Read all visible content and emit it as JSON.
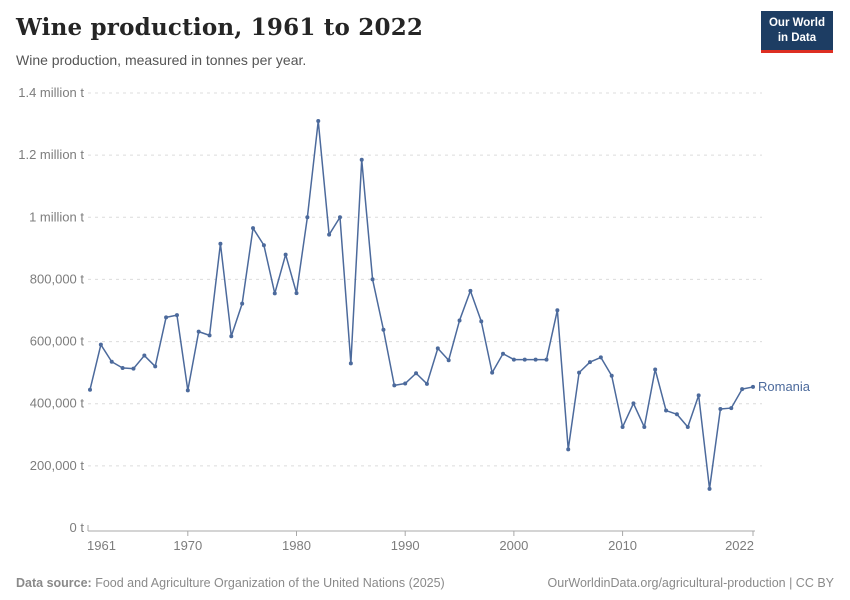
{
  "header": {
    "title": "Wine production, 1961 to 2022",
    "subtitle": "Wine production, measured in tonnes per year.",
    "logo_line1": "Our World",
    "logo_line2": "in Data"
  },
  "footer": {
    "datasource_label": "Data source:",
    "datasource_text": " Food and Agriculture Organization of the United Nations (2025)",
    "link_text": "OurWorldinData.org/agricultural-production | CC BY"
  },
  "colors": {
    "line": "#4C6A9C",
    "gridline": "#dcdcdc",
    "axis": "#a8a8a8",
    "tick_label": "#7d7d7d",
    "logo_bg": "#1d3d63",
    "logo_accent": "#dd2e22"
  },
  "chart_data": {
    "type": "line",
    "title": "Wine production, 1961 to 2022",
    "unit": "tonnes per year",
    "grid": "horizontal-dashed",
    "legend_position": "end-of-line-label",
    "xlim": [
      1961,
      2022
    ],
    "ylim": [
      0,
      1400000
    ],
    "x_ticks": [
      1961,
      1970,
      1980,
      1990,
      2000,
      2010,
      2022
    ],
    "y_ticks": [
      {
        "value": 0,
        "label": "0 t"
      },
      {
        "value": 200000,
        "label": "200,000 t"
      },
      {
        "value": 400000,
        "label": "400,000 t"
      },
      {
        "value": 600000,
        "label": "600,000 t"
      },
      {
        "value": 800000,
        "label": "800,000 t"
      },
      {
        "value": 1000000,
        "label": "1 million t"
      },
      {
        "value": 1200000,
        "label": "1.2 million t"
      },
      {
        "value": 1400000,
        "label": "1.4 million t"
      }
    ],
    "x": [
      1961,
      1962,
      1963,
      1964,
      1965,
      1966,
      1967,
      1968,
      1969,
      1970,
      1971,
      1972,
      1973,
      1974,
      1975,
      1976,
      1977,
      1978,
      1979,
      1980,
      1981,
      1982,
      1983,
      1984,
      1985,
      1986,
      1987,
      1988,
      1989,
      1990,
      1991,
      1992,
      1993,
      1994,
      1995,
      1996,
      1997,
      1998,
      1999,
      2000,
      2001,
      2002,
      2003,
      2004,
      2005,
      2006,
      2007,
      2008,
      2009,
      2010,
      2011,
      2012,
      2013,
      2014,
      2015,
      2016,
      2017,
      2018,
      2019,
      2020,
      2021,
      2022
    ],
    "series": [
      {
        "name": "Romania",
        "values": [
          445000,
          590000,
          535000,
          515000,
          513000,
          555000,
          520000,
          678000,
          685000,
          443000,
          632000,
          620000,
          915000,
          617000,
          722000,
          965000,
          910000,
          755000,
          880000,
          756000,
          1000000,
          1310000,
          944000,
          1000000,
          530000,
          1185000,
          800000,
          638000,
          459000,
          465000,
          498000,
          464000,
          578000,
          540000,
          668000,
          763000,
          665000,
          500000,
          561000,
          542000,
          542000,
          542000,
          542000,
          701000,
          253000,
          500000,
          534000,
          549000,
          490000,
          325000,
          401000,
          325000,
          510000,
          378000,
          366000,
          325000,
          427000,
          126000,
          383000,
          386000,
          447000,
          454000
        ]
      }
    ]
  }
}
